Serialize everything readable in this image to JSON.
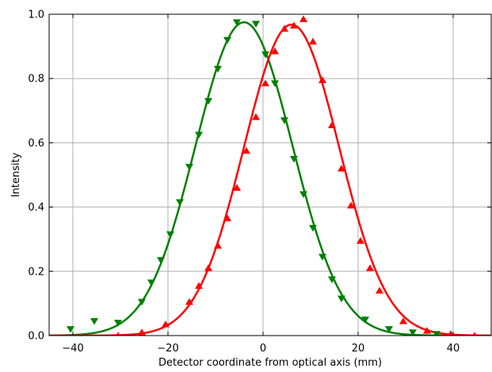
{
  "chart_data": {
    "type": "scatter",
    "title": "",
    "xlabel": "Detector coordinate from optical axis (mm)",
    "ylabel": "Intensity",
    "xlim": [
      -45,
      48
    ],
    "ylim": [
      0,
      1.0
    ],
    "xticks": [
      -40,
      -20,
      0,
      20,
      40
    ],
    "xtick_labels": [
      "−40",
      "−20",
      "0",
      "20",
      "40"
    ],
    "yticks": [
      0.0,
      0.2,
      0.4,
      0.6,
      0.8,
      1.0
    ],
    "ytick_labels": [
      "0.0",
      "0.2",
      "0.4",
      "0.6",
      "0.8",
      "1.0"
    ],
    "grid": true,
    "series": [
      {
        "kind": "points",
        "marker": "triangle-down",
        "color": "#008000",
        "x": [
          -40.5,
          -35.5,
          -30.5,
          -25.5,
          -23.5,
          -21.5,
          -19.5,
          -17.5,
          -15.5,
          -13.5,
          -11.5,
          -9.5,
          -7.5,
          -5.5,
          -1.5,
          0.5,
          2.5,
          4.5,
          6.5,
          8.5,
          10.5,
          12.5,
          14.5,
          16.5,
          21.5,
          26.5,
          31.5,
          36.5
        ],
        "y": [
          0.02,
          0.045,
          0.04,
          0.105,
          0.165,
          0.235,
          0.315,
          0.415,
          0.525,
          0.625,
          0.73,
          0.83,
          0.92,
          0.975,
          0.97,
          0.875,
          0.785,
          0.67,
          0.55,
          0.44,
          0.335,
          0.245,
          0.175,
          0.115,
          0.05,
          0.02,
          0.01,
          0.005
        ]
      },
      {
        "kind": "fit-curve",
        "color": "#008000",
        "amplitude": 0.975,
        "center": -4.0,
        "sigma": 10.2
      },
      {
        "kind": "points",
        "marker": "triangle-up",
        "color": "#ff0000",
        "x": [
          -30.5,
          -25.5,
          -20.5,
          -15.5,
          -13.5,
          -11.5,
          -9.5,
          -7.5,
          -5.5,
          -3.5,
          -1.5,
          0.5,
          2.5,
          4.5,
          6.5,
          8.5,
          10.5,
          12.5,
          14.5,
          16.5,
          18.5,
          20.5,
          22.5,
          24.5,
          29.5,
          34.5,
          39.5,
          44.5
        ],
        "y": [
          0.0,
          0.01,
          0.035,
          0.105,
          0.155,
          0.21,
          0.28,
          0.365,
          0.46,
          0.575,
          0.68,
          0.785,
          0.885,
          0.955,
          0.965,
          0.985,
          0.915,
          0.795,
          0.655,
          0.52,
          0.405,
          0.295,
          0.21,
          0.14,
          0.045,
          0.015,
          0.005,
          0.0
        ]
      },
      {
        "kind": "fit-curve",
        "color": "#ff0000",
        "amplitude": 0.968,
        "center": 6.0,
        "sigma": 10.0
      }
    ]
  }
}
